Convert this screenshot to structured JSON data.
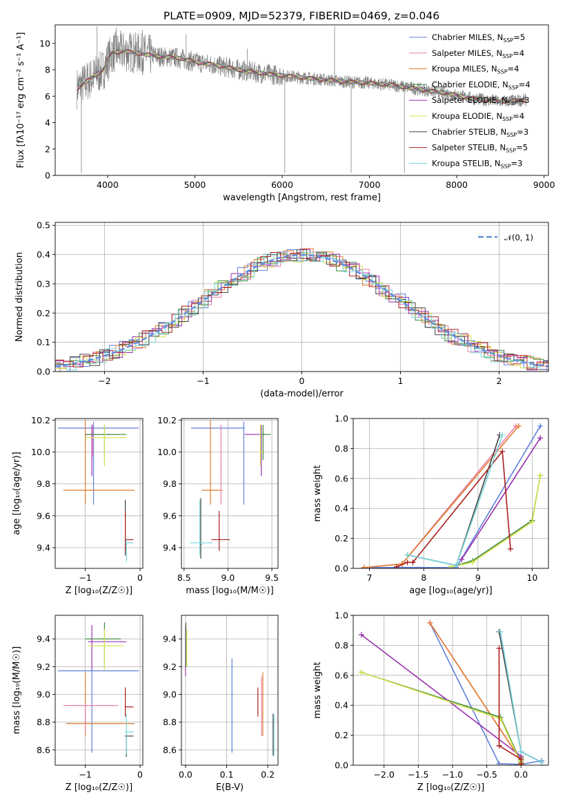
{
  "figure_title": "PLATE=0909, MJD=52379, FIBERID=0469, z=0.046",
  "colors": {
    "Chabrier MILES": "#5f7fd9",
    "Salpeter MILES": "#e87fa8",
    "Kroupa MILES": "#e07a2a",
    "Chabrier ELODIE": "#3f8a3f",
    "Salpeter ELODIE": "#9a2fae",
    "Kroupa ELODIE": "#d6e24a",
    "Chabrier STELIB": "#444444",
    "Salpeter STELIB": "#a81c1c",
    "Kroupa STELIB": "#75d6de",
    "data": "#808080",
    "normal": "#5f8fdf",
    "grid": "#b0b0b0"
  },
  "chart_data": [
    {
      "id": "spectrum",
      "type": "line",
      "title": "PLATE=0909, MJD=52379, FIBERID=0469, z=0.046",
      "xlabel": "wavelength [Angstrom, rest frame]",
      "ylabel": "Flux [fλ10⁻¹⁷ erg cm⁻² s⁻¹ A⁻¹]",
      "xlim": [
        3400,
        9050
      ],
      "ylim": [
        0,
        11.4
      ],
      "xticks": [
        4000,
        5000,
        6000,
        7000,
        8000,
        9000
      ],
      "yticks": [
        0,
        2,
        4,
        6,
        8,
        10
      ],
      "grid": false,
      "legend_position": "top-right",
      "legend": [
        {
          "label": "Chabrier MILES, N",
          "sub": "SSP",
          "suffix": "=5"
        },
        {
          "label": "Salpeter MILES, N",
          "sub": "SSP",
          "suffix": "=4"
        },
        {
          "label": "Kroupa MILES, N",
          "sub": "SSP",
          "suffix": "=4"
        },
        {
          "label": "Chabrier ELODIE, N",
          "sub": "SSP",
          "suffix": "=4"
        },
        {
          "label": "Salpeter ELODIE, N",
          "sub": "SSP",
          "suffix": "=3"
        },
        {
          "label": "Kroupa ELODIE, N",
          "sub": "SSP",
          "suffix": "=4"
        },
        {
          "label": "Chabrier STELIB, N",
          "sub": "SSP",
          "suffix": "=3"
        },
        {
          "label": "Salpeter STELIB, N",
          "sub": "SSP",
          "suffix": "=5"
        },
        {
          "label": "Kroupa STELIB, N",
          "sub": "SSP",
          "suffix": "=3"
        }
      ],
      "data_continuum": {
        "wavelength": [
          3650,
          3800,
          3950,
          4050,
          4200,
          4400,
          4600,
          4800,
          5000,
          5200,
          5500,
          5800,
          6100,
          6400,
          6700,
          7000,
          7300,
          7600,
          7900,
          8200,
          8500,
          8800
        ],
        "flux": [
          6.6,
          7.3,
          8.0,
          9.3,
          9.4,
          9.2,
          9.0,
          8.9,
          8.6,
          8.4,
          8.0,
          7.7,
          7.5,
          7.3,
          7.1,
          7.0,
          6.8,
          6.5,
          6.2,
          5.8,
          5.6,
          5.7
        ]
      },
      "data_spikes": [
        {
          "x": 3700,
          "y": 0.2
        },
        {
          "x": 3880,
          "y": 11.3
        },
        {
          "x": 4100,
          "y": 11.2
        },
        {
          "x": 4400,
          "y": 11.0
        },
        {
          "x": 4900,
          "y": 10.7
        },
        {
          "x": 5600,
          "y": 9.6
        },
        {
          "x": 6030,
          "y": 0.2
        },
        {
          "x": 6600,
          "y": 11.3
        },
        {
          "x": 6790,
          "y": 0.2
        },
        {
          "x": 7400,
          "y": 0.2
        }
      ]
    },
    {
      "id": "residual_hist",
      "type": "histogram",
      "xlabel": "(data-model)/error",
      "ylabel": "Normed distribution",
      "xlim": [
        -2.5,
        2.5
      ],
      "ylim": [
        0,
        0.51
      ],
      "xticks": [
        -2,
        -1,
        0,
        1,
        2
      ],
      "yticks": [
        0.0,
        0.1,
        0.2,
        0.3,
        0.4,
        0.5
      ],
      "grid": true,
      "legend_position": "top-right",
      "legend_label": "𝒩(0, 1)",
      "bin_width": 0.1,
      "series_note": "nine SSP models, one histogram each"
    },
    {
      "id": "age_vs_Z",
      "type": "errorbar",
      "xlabel": "Z [log₁₀(Z/Z☉)]",
      "ylabel": "age  [log₁₀(age/yr)]",
      "xlim": [
        -1.55,
        0.05
      ],
      "ylim": [
        9.27,
        10.21
      ],
      "xticks": [
        -1,
        0
      ],
      "yticks": [
        9.4,
        9.6,
        9.8,
        10.0,
        10.2
      ],
      "grid": true,
      "points": [
        {
          "model": "Chabrier MILES",
          "x": -0.85,
          "xlo": -1.5,
          "xhi": -0.02,
          "y": 10.15,
          "ylo": 9.67,
          "yhi": 10.19
        },
        {
          "model": "Kroupa MILES",
          "x": -1.0,
          "xlo": -1.4,
          "xhi": -0.1,
          "y": 9.76,
          "ylo": 9.67,
          "yhi": 10.2
        },
        {
          "model": "Salpeter MILES",
          "x": -0.86,
          "xlo": -1.0,
          "xhi": -0.4,
          "y": 10.11,
          "ylo": 9.97,
          "yhi": 10.17
        },
        {
          "model": "Salpeter ELODIE",
          "x": -0.88,
          "xlo": -1.0,
          "xhi": -0.4,
          "y": 10.11,
          "ylo": 9.85,
          "yhi": 10.17
        },
        {
          "model": "Chabrier ELODIE",
          "x": -0.65,
          "xlo": -1.0,
          "xhi": -0.25,
          "y": 10.11,
          "ylo": 9.95,
          "yhi": 10.17
        },
        {
          "model": "Kroupa ELODIE",
          "x": -0.65,
          "xlo": -1.0,
          "xhi": -0.25,
          "y": 10.09,
          "ylo": 9.91,
          "yhi": 10.17
        },
        {
          "model": "Chabrier STELIB",
          "x": -0.27,
          "xlo": -0.28,
          "xhi": -0.26,
          "y": 9.42,
          "ylo": 9.35,
          "yhi": 9.7
        },
        {
          "model": "Salpeter STELIB",
          "x": -0.27,
          "xlo": -0.28,
          "xhi": -0.12,
          "y": 9.45,
          "ylo": 9.38,
          "yhi": 9.63
        },
        {
          "model": "Kroupa STELIB",
          "x": -0.25,
          "xlo": -0.27,
          "xhi": -0.12,
          "y": 9.43,
          "ylo": 9.31,
          "yhi": 9.45
        }
      ]
    },
    {
      "id": "age_vs_mass",
      "type": "errorbar",
      "xlabel": "mass [log₁₀(M/M☉)]",
      "ylabel": "",
      "xlim": [
        8.47,
        9.57
      ],
      "ylim": [
        9.27,
        10.21
      ],
      "xticks": [
        8.5,
        9.0,
        9.5
      ],
      "yticks": [
        9.4,
        9.6,
        9.8,
        10.0,
        10.2
      ],
      "grid": true,
      "points": [
        {
          "model": "Chabrier MILES",
          "x": 9.18,
          "xlo": 8.58,
          "xhi": 9.19,
          "y": 10.15,
          "ylo": 9.67,
          "yhi": 10.19
        },
        {
          "model": "Kroupa MILES",
          "x": 8.8,
          "xlo": 8.7,
          "xhi": 8.94,
          "y": 9.76,
          "ylo": 9.67,
          "yhi": 10.2
        },
        {
          "model": "Salpeter MILES",
          "x": 8.92,
          "xlo": 8.92,
          "xhi": 8.93,
          "y": 9.9,
          "ylo": 9.67,
          "yhi": 10.17
        },
        {
          "model": "Salpeter ELODIE",
          "x": 9.38,
          "xlo": 9.19,
          "xhi": 9.44,
          "y": 10.11,
          "ylo": 9.85,
          "yhi": 10.17
        },
        {
          "model": "Chabrier ELODIE",
          "x": 9.4,
          "xlo": 9.38,
          "xhi": 9.49,
          "y": 10.11,
          "ylo": 9.95,
          "yhi": 10.17
        },
        {
          "model": "Kroupa ELODIE",
          "x": 9.37,
          "xlo": 9.35,
          "xhi": 9.4,
          "y": 10.0,
          "ylo": 9.91,
          "yhi": 10.17
        },
        {
          "model": "Chabrier STELIB",
          "x": 8.69,
          "xlo": 8.69,
          "xhi": 8.7,
          "y": 9.42,
          "ylo": 9.33,
          "yhi": 9.71
        },
        {
          "model": "Salpeter STELIB",
          "x": 8.9,
          "xlo": 8.81,
          "xhi": 9.02,
          "y": 9.45,
          "ylo": 9.38,
          "yhi": 9.63
        },
        {
          "model": "Kroupa STELIB",
          "x": 8.68,
          "xlo": 8.57,
          "xhi": 8.82,
          "y": 9.43,
          "ylo": 9.35,
          "yhi": 9.7
        }
      ]
    },
    {
      "id": "weight_vs_age",
      "type": "line",
      "xlabel": "age  [log₁₀(age/yr)]",
      "ylabel": "mass weight",
      "xlim": [
        6.7,
        10.3
      ],
      "ylim": [
        0.0,
        1.0
      ],
      "xticks": [
        7,
        8,
        9,
        10
      ],
      "yticks": [
        0.0,
        0.2,
        0.4,
        0.6,
        0.8,
        1.0
      ],
      "grid": true,
      "series": [
        {
          "model": "Chabrier MILES",
          "points": [
            [
              6.9,
              0.005
            ],
            [
              7.6,
              0.006
            ],
            [
              8.6,
              0.005
            ],
            [
              10.15,
              0.95
            ]
          ]
        },
        {
          "model": "Salpeter MILES",
          "points": [
            [
              6.9,
              0.005
            ],
            [
              7.6,
              0.03
            ],
            [
              9.7,
              0.95
            ]
          ]
        },
        {
          "model": "Kroupa MILES",
          "points": [
            [
              6.9,
              0.005
            ],
            [
              7.6,
              0.03
            ],
            [
              9.75,
              0.95
            ]
          ]
        },
        {
          "model": "Chabrier ELODIE",
          "points": [
            [
              8.6,
              0.02
            ],
            [
              8.9,
              0.05
            ],
            [
              10.0,
              0.32
            ],
            [
              10.15,
              0.62
            ]
          ]
        },
        {
          "model": "Salpeter ELODIE",
          "points": [
            [
              8.7,
              0.06
            ],
            [
              10.15,
              0.87
            ]
          ]
        },
        {
          "model": "Kroupa ELODIE",
          "points": [
            [
              8.5,
              0.01
            ],
            [
              8.9,
              0.04
            ],
            [
              10.0,
              0.31
            ],
            [
              10.15,
              0.62
            ]
          ]
        },
        {
          "model": "Chabrier STELIB",
          "points": [
            [
              7.7,
              0.09
            ],
            [
              8.6,
              0.02
            ],
            [
              9.4,
              0.89
            ]
          ]
        },
        {
          "model": "Salpeter STELIB",
          "points": [
            [
              7.5,
              0.01
            ],
            [
              7.7,
              0.04
            ],
            [
              7.8,
              0.04
            ],
            [
              9.45,
              0.78
            ],
            [
              9.6,
              0.13
            ]
          ]
        },
        {
          "model": "Kroupa STELIB",
          "points": [
            [
              7.7,
              0.09
            ],
            [
              8.6,
              0.02
            ],
            [
              9.45,
              0.89
            ]
          ]
        }
      ]
    },
    {
      "id": "mass_vs_Z",
      "type": "errorbar",
      "xlabel": "Z [log₁₀(Z/Z☉)]",
      "ylabel": "mass [log₁₀(M/M☉)]",
      "xlim": [
        -1.55,
        0.05
      ],
      "ylim": [
        8.49,
        9.57
      ],
      "xticks": [
        -1,
        0
      ],
      "yticks": [
        8.6,
        8.8,
        9.0,
        9.2,
        9.4
      ],
      "grid": true,
      "points": [
        {
          "model": "Chabrier MILES",
          "x": -0.88,
          "xlo": -1.5,
          "xhi": -0.02,
          "y": 9.17,
          "ylo": 8.58,
          "yhi": 9.19
        },
        {
          "model": "Kroupa MILES",
          "x": -1.0,
          "xlo": -1.35,
          "xhi": -0.1,
          "y": 8.79,
          "ylo": 8.7,
          "yhi": 9.16
        },
        {
          "model": "Salpeter MILES",
          "x": -1.0,
          "xlo": -1.4,
          "xhi": -0.4,
          "y": 8.92,
          "ylo": 8.72,
          "yhi": 8.93
        },
        {
          "model": "Salpeter ELODIE",
          "x": -0.88,
          "xlo": -0.95,
          "xhi": -0.25,
          "y": 9.38,
          "ylo": 9.18,
          "yhi": 9.5
        },
        {
          "model": "Chabrier ELODIE",
          "x": -0.65,
          "xlo": -1.0,
          "xhi": -0.35,
          "y": 9.4,
          "ylo": 9.18,
          "yhi": 9.52
        },
        {
          "model": "Kroupa ELODIE",
          "x": -0.65,
          "xlo": -0.95,
          "xhi": -0.3,
          "y": 9.35,
          "ylo": 9.18,
          "yhi": 9.47
        },
        {
          "model": "Chabrier STELIB",
          "x": -0.25,
          "xlo": -0.28,
          "xhi": -0.12,
          "y": 8.7,
          "ylo": 8.55,
          "yhi": 8.7
        },
        {
          "model": "Salpeter STELIB",
          "x": -0.27,
          "xlo": -0.28,
          "xhi": -0.12,
          "y": 8.91,
          "ylo": 8.84,
          "yhi": 9.05
        },
        {
          "model": "Kroupa STELIB",
          "x": -0.25,
          "xlo": -0.27,
          "xhi": -0.12,
          "y": 8.73,
          "ylo": 8.57,
          "yhi": 8.86
        }
      ]
    },
    {
      "id": "mass_vs_ebv",
      "type": "errorbar",
      "xlabel": "E(B-V)",
      "ylabel": "",
      "xlim": [
        -0.01,
        0.225
      ],
      "ylim": [
        8.49,
        9.57
      ],
      "xticks": [
        0.0,
        0.1,
        0.2
      ],
      "yticks": [
        8.6,
        8.8,
        9.0,
        9.2,
        9.4
      ],
      "grid": true,
      "points": [
        {
          "model": "Chabrier MILES",
          "x": 0.113,
          "y": 8.92,
          "ylo": 8.58,
          "yhi": 9.26
        },
        {
          "model": "Kroupa MILES",
          "x": 0.188,
          "y": 8.91,
          "ylo": 8.7,
          "yhi": 9.16
        },
        {
          "model": "Salpeter MILES",
          "x": 0.185,
          "y": 8.92,
          "ylo": 8.7,
          "yhi": 9.13
        },
        {
          "model": "Salpeter ELODIE",
          "x": 0.0,
          "y": 9.35,
          "ylo": 9.13,
          "yhi": 9.5
        },
        {
          "model": "Chabrier ELODIE",
          "x": 0.001,
          "y": 9.38,
          "ylo": 9.2,
          "yhi": 9.52
        },
        {
          "model": "Kroupa ELODIE",
          "x": 0.003,
          "y": 9.33,
          "ylo": 9.2,
          "yhi": 9.47
        },
        {
          "model": "Chabrier STELIB",
          "x": 0.213,
          "y": 8.7,
          "ylo": 8.56,
          "yhi": 8.86
        },
        {
          "model": "Salpeter STELIB",
          "x": 0.176,
          "y": 8.95,
          "ylo": 8.84,
          "yhi": 9.05
        },
        {
          "model": "Kroupa STELIB",
          "x": 0.215,
          "y": 8.7,
          "ylo": 8.55,
          "yhi": 8.86
        }
      ]
    },
    {
      "id": "weight_vs_Z",
      "type": "line",
      "xlabel": "Z [log₁₀(Z/Z☉)]",
      "ylabel": "mass weight",
      "xlim": [
        -2.45,
        0.4
      ],
      "ylim": [
        0.0,
        1.0
      ],
      "xticks": [
        -2.0,
        -1.5,
        -1.0,
        -0.5,
        0.0
      ],
      "yticks": [
        0.0,
        0.2,
        0.4,
        0.6,
        0.8,
        1.0
      ],
      "grid": true,
      "series": [
        {
          "model": "Chabrier MILES",
          "points": [
            [
              -1.33,
              0.95
            ],
            [
              -0.32,
              0.01
            ],
            [
              0.0,
              0.005
            ],
            [
              0.3,
              0.03
            ]
          ]
        },
        {
          "model": "Salpeter MILES",
          "points": [
            [
              -1.33,
              0.95
            ],
            [
              0.0,
              0.03
            ],
            [
              0.0,
              0.005
            ]
          ]
        },
        {
          "model": "Kroupa MILES",
          "points": [
            [
              -1.33,
              0.95
            ],
            [
              0.0,
              0.03
            ],
            [
              0.0,
              0.005
            ]
          ]
        },
        {
          "model": "Chabrier ELODIE",
          "points": [
            [
              -2.33,
              0.62
            ],
            [
              -0.3,
              0.32
            ],
            [
              0.0,
              0.02
            ],
            [
              0.0,
              0.05
            ]
          ]
        },
        {
          "model": "Salpeter ELODIE",
          "points": [
            [
              -2.33,
              0.87
            ],
            [
              0.0,
              0.06
            ]
          ]
        },
        {
          "model": "Kroupa ELODIE",
          "points": [
            [
              -2.33,
              0.62
            ],
            [
              -0.3,
              0.31
            ],
            [
              0.0,
              0.01
            ],
            [
              0.0,
              0.04
            ]
          ]
        },
        {
          "model": "Chabrier STELIB",
          "points": [
            [
              -0.32,
              0.89
            ],
            [
              0.0,
              0.09
            ],
            [
              0.3,
              0.02
            ]
          ]
        },
        {
          "model": "Salpeter STELIB",
          "points": [
            [
              -0.32,
              0.78
            ],
            [
              -0.32,
              0.13
            ],
            [
              0.0,
              0.04
            ],
            [
              0.0,
              0.01
            ]
          ]
        },
        {
          "model": "Kroupa STELIB",
          "points": [
            [
              -0.3,
              0.89
            ],
            [
              0.0,
              0.09
            ],
            [
              0.3,
              0.02
            ]
          ]
        }
      ]
    }
  ]
}
